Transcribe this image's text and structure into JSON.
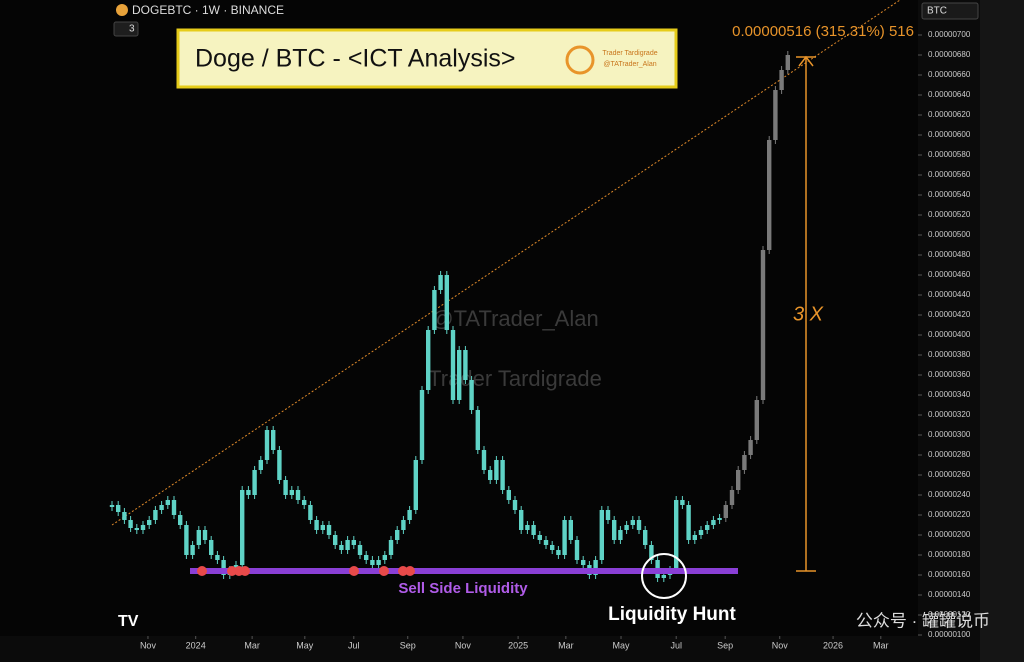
{
  "chart_data": {
    "type": "candlestick",
    "symbol": "DOGEBTC · 1W · BINANCE",
    "indicator_count": "3",
    "currency": "BTC",
    "title": "Doge / BTC - <ICT Analysis>",
    "logo_text": [
      "Trader Tardigrade",
      "@TATrader_Alan"
    ],
    "watermarks": [
      "@TATrader_Alan",
      "Trader Tardigrade"
    ],
    "target_label": "0.00000516 (315.31%) 516",
    "multiplier_label": "3 X",
    "annotations": [
      "Sell Side Liquidity",
      "Liquidity Hunt"
    ],
    "footer_watermark": "公众号 · 罐罐说币",
    "series": [
      {
        "color": "#5fd3c6",
        "values": [
          2.3e-06,
          2.23e-06,
          2.15e-06,
          2.07e-06,
          2.05e-06,
          2.1e-06,
          2.15e-06,
          2.25e-06,
          2.3e-06,
          2.35e-06,
          2.2e-06,
          2.1e-06,
          1.8e-06,
          1.9e-06,
          2.05e-06,
          1.95e-06,
          1.8e-06,
          1.75e-06,
          1.6e-06,
          1.65e-06,
          1.7e-06,
          2.45e-06,
          2.4e-06,
          2.65e-06,
          2.75e-06,
          3.05e-06,
          2.85e-06,
          2.55e-06,
          2.4e-06,
          2.45e-06,
          2.35e-06,
          2.3e-06,
          2.15e-06,
          2.05e-06,
          2.1e-06,
          2e-06,
          1.9e-06,
          1.85e-06,
          1.95e-06,
          1.9e-06,
          1.8e-06,
          1.75e-06,
          1.7e-06,
          1.75e-06,
          1.8e-06,
          1.95e-06,
          2.05e-06,
          2.15e-06,
          2.25e-06,
          2.75e-06,
          3.45e-06,
          4.05e-06,
          4.45e-06,
          4.6e-06,
          4.05e-06,
          3.35e-06,
          3.85e-06,
          3.55e-06,
          3.25e-06,
          2.85e-06,
          2.65e-06,
          2.55e-06,
          2.75e-06,
          2.45e-06,
          2.35e-06,
          2.25e-06,
          2.05e-06,
          2.1e-06,
          2e-06,
          1.95e-06,
          1.9e-06,
          1.85e-06,
          1.8e-06,
          2.15e-06,
          1.95e-06,
          1.75e-06,
          1.7e-06,
          1.6e-06,
          1.75e-06,
          2.25e-06,
          2.15e-06,
          1.95e-06,
          2.05e-06,
          2.1e-06,
          2.15e-06,
          2.05e-06,
          1.9e-06,
          1.75e-06,
          1.57e-06,
          1.6e-06,
          1.65e-06,
          2.35e-06,
          2.3e-06,
          1.95e-06,
          2e-06,
          2.05e-06,
          2.1e-06,
          2.15e-06,
          2.17e-06
        ]
      },
      {
        "color": "#7a7a7a",
        "x": [
          99,
          100,
          101,
          102,
          103,
          104,
          105,
          106,
          107,
          108,
          109
        ],
        "values": [
          2.3e-06,
          2.45e-06,
          2.65e-06,
          2.8e-06,
          2.95e-06,
          3.35e-06,
          4.85e-06,
          5.95e-06,
          6.45e-06,
          6.65e-06,
          6.8e-06
        ]
      }
    ],
    "xlim": [
      0,
      130
    ],
    "xticks": [
      {
        "value": 5.8,
        "label": "Nov"
      },
      {
        "value": 13.5,
        "label": "2024"
      },
      {
        "value": 22.6,
        "label": "Mar"
      },
      {
        "value": 31.1,
        "label": "May"
      },
      {
        "value": 39,
        "label": "Jul"
      },
      {
        "value": 47.7,
        "label": "Sep"
      },
      {
        "value": 56.6,
        "label": "Nov"
      },
      {
        "value": 65.5,
        "label": "2025"
      },
      {
        "value": 73.2,
        "label": "Mar"
      },
      {
        "value": 82.1,
        "label": "May"
      },
      {
        "value": 91,
        "label": "Jul"
      },
      {
        "value": 98.9,
        "label": "Sep"
      },
      {
        "value": 107.7,
        "label": "Nov"
      },
      {
        "value": 116.3,
        "label": "2026"
      },
      {
        "value": 124,
        "label": "Mar"
      }
    ],
    "ylim": [
      8.5e-07,
      7.35e-06
    ],
    "yticks": [
      {
        "value": 7e-06,
        "label": "0.00000700"
      },
      {
        "value": 6.8e-06,
        "label": "0.00000680"
      },
      {
        "value": 6.6e-06,
        "label": "0.00000660"
      },
      {
        "value": 6.4e-06,
        "label": "0.00000640"
      },
      {
        "value": 6.2e-06,
        "label": "0.00000620"
      },
      {
        "value": 6e-06,
        "label": "0.00000600"
      },
      {
        "value": 5.8e-06,
        "label": "0.00000580"
      },
      {
        "value": 5.6e-06,
        "label": "0.00000560"
      },
      {
        "value": 5.4e-06,
        "label": "0.00000540"
      },
      {
        "value": 5.2e-06,
        "label": "0.00000520"
      },
      {
        "value": 5e-06,
        "label": "0.00000500"
      },
      {
        "value": 4.8e-06,
        "label": "0.00000480"
      },
      {
        "value": 4.6e-06,
        "label": "0.00000460"
      },
      {
        "value": 4.4e-06,
        "label": "0.00000440"
      },
      {
        "value": 4.2e-06,
        "label": "0.00000420"
      },
      {
        "value": 4e-06,
        "label": "0.00000400"
      },
      {
        "value": 3.8e-06,
        "label": "0.00000380"
      },
      {
        "value": 3.6e-06,
        "label": "0.00000360"
      },
      {
        "value": 3.4e-06,
        "label": "0.00000340"
      },
      {
        "value": 3.2e-06,
        "label": "0.00000320"
      },
      {
        "value": 3e-06,
        "label": "0.00000300"
      },
      {
        "value": 2.8e-06,
        "label": "0.00000280"
      },
      {
        "value": 2.6e-06,
        "label": "0.00000260"
      },
      {
        "value": 2.4e-06,
        "label": "0.00000240"
      },
      {
        "value": 2.2e-06,
        "label": "0.00000220"
      },
      {
        "value": 2e-06,
        "label": "0.00000200"
      },
      {
        "value": 1.8e-06,
        "label": "0.00000180"
      },
      {
        "value": 1.6e-06,
        "label": "0.00000160"
      },
      {
        "value": 1.4e-06,
        "label": "0.00000140"
      },
      {
        "value": 1.2e-06,
        "label": "0.00000120"
      },
      {
        "value": 1e-06,
        "label": "0.00000100"
      }
    ]
  }
}
